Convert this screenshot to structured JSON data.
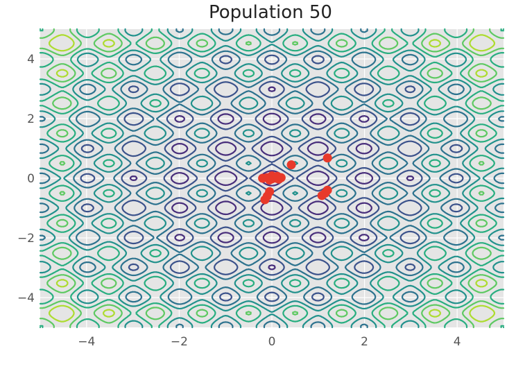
{
  "chart_data": {
    "type": "contour",
    "title": "Population 50",
    "xlabel": "",
    "ylabel": "",
    "xlim": [
      -5,
      5
    ],
    "ylim": [
      -5,
      5
    ],
    "x_ticks": [
      -4,
      -2,
      0,
      2,
      4
    ],
    "y_ticks": [
      4,
      2,
      0,
      -2,
      -4
    ],
    "x_tick_labels": [
      "−4",
      "−2",
      "0",
      "2",
      "4"
    ],
    "y_tick_labels": [
      "4",
      "2",
      "0",
      "−2",
      "−4"
    ],
    "grid": true,
    "style": "ggplot",
    "background_color": "#e5e5e5",
    "point_color": "#e8392a",
    "contour_colors": [
      "#472d7b",
      "#3b528b",
      "#2c728e",
      "#21918c",
      "#28ae80",
      "#5ec962",
      "#addc30"
    ],
    "contour_function": "Rastrigin-like: x^2 + y^2 - 10cos(2πx) - 10cos(2πy)",
    "series": [
      {
        "type": "scatter",
        "points": [
          [
            -0.2,
            0.0
          ],
          [
            -0.1,
            0.02
          ],
          [
            0.0,
            -0.02
          ],
          [
            0.05,
            0.05
          ],
          [
            0.1,
            0.0
          ],
          [
            0.15,
            -0.03
          ],
          [
            0.2,
            0.02
          ],
          [
            0.0,
            0.08
          ],
          [
            -0.05,
            -0.06
          ],
          [
            0.12,
            0.06
          ],
          [
            0.42,
            0.45
          ],
          [
            1.2,
            0.68
          ],
          [
            -0.05,
            -0.45
          ],
          [
            -0.15,
            -0.72
          ],
          [
            -0.1,
            -0.6
          ],
          [
            1.2,
            -0.4
          ],
          [
            1.08,
            -0.58
          ],
          [
            1.15,
            -0.5
          ]
        ]
      }
    ]
  }
}
